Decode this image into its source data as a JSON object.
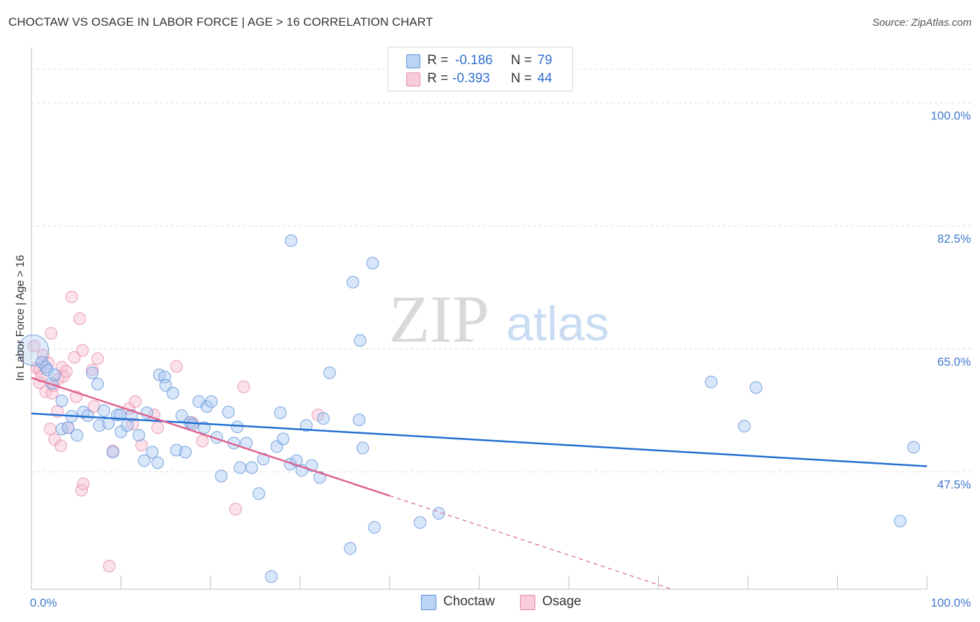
{
  "title": "CHOCTAW VS OSAGE IN LABOR FORCE | AGE > 16 CORRELATION CHART",
  "source": "Source: ZipAtlas.com",
  "watermark": {
    "zip": "ZIP",
    "atlas": "atlas"
  },
  "legend": {
    "r_label": "R =",
    "n_label": "N =",
    "rows": [
      {
        "r": "-0.186",
        "n": "79"
      },
      {
        "r": "-0.393",
        "n": "44"
      }
    ]
  },
  "colors": {
    "choctaw_fill": "#a9c8f2",
    "choctaw_stroke": "#5b8fd6",
    "choctaw_line": "#1f6fd1",
    "osage_fill": "#f7bdd0",
    "osage_stroke": "#e58aa8",
    "osage_line": "#e0608e",
    "tick_label": "#3f78cc",
    "grid": "#dcdcdc"
  },
  "chart_data": {
    "type": "scatter",
    "title": "CHOCTAW VS OSAGE IN LABOR FORCE | AGE > 16 CORRELATION CHART",
    "xlabel": "",
    "ylabel": "In Labor Force | Age > 16",
    "xlim": [
      0,
      100
    ],
    "ylim": [
      30.8,
      107.5
    ],
    "x_tick_labels": [
      "0.0%",
      "100.0%"
    ],
    "y_ticks": [
      47.5,
      65.0,
      82.5,
      100.0
    ],
    "y_tick_labels": [
      "47.5%",
      "65.0%",
      "82.5%",
      "100.0%"
    ],
    "grid": true,
    "legend_position": "top-center and bottom",
    "series": [
      {
        "name": "Choctaw",
        "r": -0.186,
        "n": 79,
        "trend": {
          "x": [
            0,
            100
          ],
          "y": [
            55.8,
            48.3
          ]
        },
        "points": [
          [
            0.2,
            64.8
          ],
          [
            1.2,
            63.1
          ],
          [
            1.6,
            62.4
          ],
          [
            1.8,
            62.0
          ],
          [
            2.3,
            60.1
          ],
          [
            2.6,
            61.3
          ],
          [
            3.4,
            57.6
          ],
          [
            3.4,
            53.6
          ],
          [
            4.1,
            53.8
          ],
          [
            4.5,
            55.4
          ],
          [
            5.1,
            52.7
          ],
          [
            5.8,
            56.0
          ],
          [
            6.3,
            55.5
          ],
          [
            6.8,
            61.6
          ],
          [
            7.4,
            60.0
          ],
          [
            7.6,
            54.1
          ],
          [
            8.1,
            56.2
          ],
          [
            8.6,
            54.4
          ],
          [
            9.1,
            50.3
          ],
          [
            9.6,
            55.6
          ],
          [
            10.0,
            53.2
          ],
          [
            10.7,
            54.1
          ],
          [
            11.2,
            55.5
          ],
          [
            12.0,
            52.7
          ],
          [
            12.6,
            49.1
          ],
          [
            12.9,
            55.9
          ],
          [
            13.5,
            50.3
          ],
          [
            14.1,
            48.8
          ],
          [
            14.3,
            61.3
          ],
          [
            14.9,
            61.0
          ],
          [
            15.0,
            59.8
          ],
          [
            16.2,
            50.6
          ],
          [
            16.8,
            55.5
          ],
          [
            17.2,
            50.3
          ],
          [
            17.7,
            54.5
          ],
          [
            18.0,
            54.2
          ],
          [
            18.7,
            57.5
          ],
          [
            19.3,
            53.8
          ],
          [
            19.6,
            56.8
          ],
          [
            20.1,
            57.5
          ],
          [
            20.7,
            52.4
          ],
          [
            21.2,
            46.9
          ],
          [
            22.0,
            56.0
          ],
          [
            22.6,
            51.6
          ],
          [
            23.0,
            53.9
          ],
          [
            23.3,
            48.1
          ],
          [
            24.0,
            51.6
          ],
          [
            24.6,
            48.1
          ],
          [
            25.4,
            44.4
          ],
          [
            25.9,
            49.3
          ],
          [
            26.8,
            32.6
          ],
          [
            27.4,
            51.1
          ],
          [
            27.8,
            55.9
          ],
          [
            28.1,
            52.2
          ],
          [
            28.9,
            48.6
          ],
          [
            29.6,
            49.1
          ],
          [
            30.2,
            47.7
          ],
          [
            30.7,
            54.1
          ],
          [
            31.3,
            48.4
          ],
          [
            32.2,
            46.7
          ],
          [
            32.6,
            55.1
          ],
          [
            33.3,
            61.6
          ],
          [
            35.6,
            36.6
          ],
          [
            35.9,
            74.5
          ],
          [
            36.6,
            54.9
          ],
          [
            36.7,
            66.2
          ],
          [
            37.0,
            50.9
          ],
          [
            38.1,
            77.2
          ],
          [
            38.3,
            39.6
          ],
          [
            43.4,
            40.3
          ],
          [
            45.5,
            41.6
          ],
          [
            29.0,
            80.4
          ],
          [
            75.9,
            60.3
          ],
          [
            79.6,
            54.0
          ],
          [
            80.9,
            59.5
          ],
          [
            97.0,
            40.5
          ],
          [
            98.5,
            51.0
          ],
          [
            9.9,
            55.6
          ],
          [
            15.8,
            58.7
          ]
        ]
      },
      {
        "name": "Osage",
        "r": -0.393,
        "n": 44,
        "trend": {
          "x": [
            0,
            40.0
          ],
          "y": [
            60.9,
            44.1
          ]
        },
        "trend_dashed": {
          "x": [
            40.0,
            71.5
          ],
          "y": [
            44.1,
            30.8
          ]
        },
        "points": [
          [
            0.3,
            65.4
          ],
          [
            0.6,
            62.3
          ],
          [
            0.9,
            62.1
          ],
          [
            1.1,
            61.1
          ],
          [
            1.3,
            64.1
          ],
          [
            1.6,
            58.9
          ],
          [
            1.9,
            63.0
          ],
          [
            2.1,
            53.6
          ],
          [
            2.2,
            67.2
          ],
          [
            2.3,
            58.7
          ],
          [
            2.5,
            59.8
          ],
          [
            2.6,
            52.1
          ],
          [
            2.9,
            56.1
          ],
          [
            3.0,
            60.7
          ],
          [
            3.3,
            51.2
          ],
          [
            3.4,
            62.4
          ],
          [
            3.6,
            61.1
          ],
          [
            3.9,
            61.8
          ],
          [
            4.1,
            53.8
          ],
          [
            4.5,
            72.4
          ],
          [
            4.8,
            63.8
          ],
          [
            5.0,
            58.2
          ],
          [
            5.4,
            69.3
          ],
          [
            5.6,
            44.9
          ],
          [
            5.7,
            64.8
          ],
          [
            5.8,
            45.8
          ],
          [
            6.8,
            62.0
          ],
          [
            7.0,
            56.8
          ],
          [
            7.4,
            63.6
          ],
          [
            8.7,
            34.1
          ],
          [
            9.1,
            50.5
          ],
          [
            10.9,
            56.5
          ],
          [
            11.3,
            54.3
          ],
          [
            11.6,
            57.5
          ],
          [
            12.3,
            51.3
          ],
          [
            13.7,
            55.6
          ],
          [
            14.1,
            53.8
          ],
          [
            16.2,
            62.5
          ],
          [
            18.0,
            54.5
          ],
          [
            19.1,
            51.9
          ],
          [
            22.8,
            42.2
          ],
          [
            23.7,
            59.6
          ],
          [
            32.0,
            55.6
          ],
          [
            0.9,
            60.2
          ]
        ]
      }
    ]
  },
  "bottom_legend": {
    "items": [
      "Choctaw",
      "Osage"
    ]
  },
  "axis": {
    "x_min_label": "0.0%",
    "x_max_label": "100.0%"
  }
}
